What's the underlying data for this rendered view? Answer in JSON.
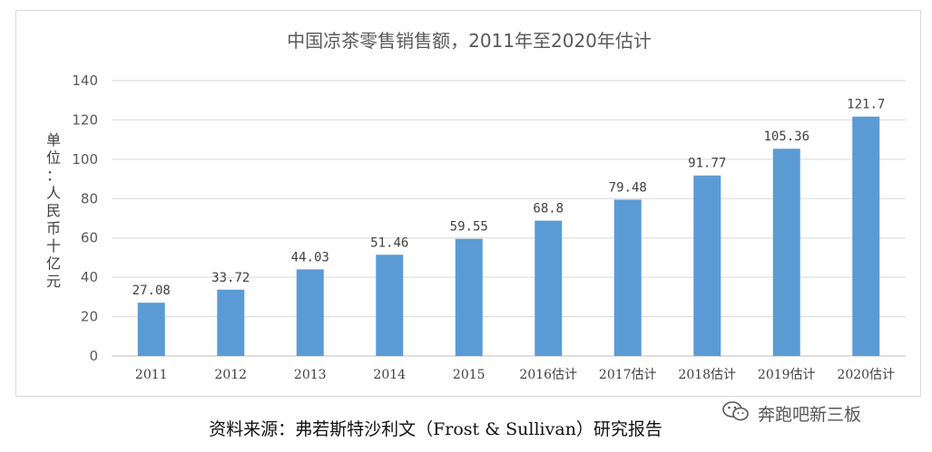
{
  "chart_data": {
    "type": "bar",
    "title": "中国凉茶零售销售额，2011年至2020年估计",
    "ylabel": "单位：人民币十亿元",
    "xlabel": "",
    "categories": [
      "2011",
      "2012",
      "2013",
      "2014",
      "2015",
      "2016估计",
      "2017估计",
      "2018估计",
      "2019估计",
      "2020估计"
    ],
    "values": [
      27.08,
      33.72,
      44.03,
      51.46,
      59.55,
      68.8,
      79.48,
      91.77,
      105.36,
      121.7
    ],
    "data_labels": [
      "27.08",
      "33.72",
      "44.03",
      "51.46",
      "59.55",
      "68.8",
      "79.48",
      "91.77",
      "105.36",
      "121.7"
    ],
    "ylim": [
      0,
      140
    ],
    "yticks": [
      0,
      20,
      40,
      60,
      80,
      100,
      120,
      140
    ],
    "grid": true,
    "legend": "none",
    "bar_color": "#5b9bd5",
    "grid_color": "#d9d9d9"
  },
  "source": "资料来源：弗若斯特沙利文（Frost & Sullivan）研究报告",
  "watermark": {
    "text": "奔跑吧新三板",
    "icon": "wechat-icon"
  }
}
